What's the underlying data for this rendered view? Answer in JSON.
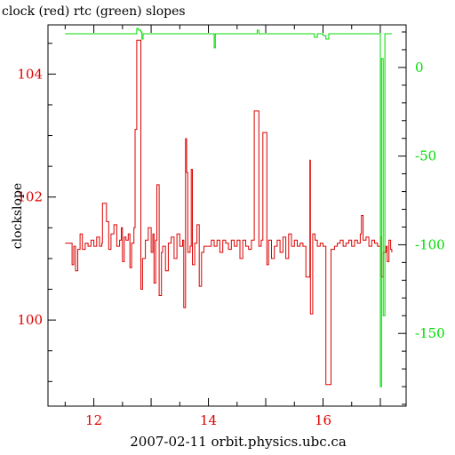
{
  "chart_data": {
    "type": "line",
    "title": "clock (red) rtc (green) slopes",
    "xlabel": "2007-02-11 orbit.physics.ubc.ca",
    "ylabel": "clockslope",
    "ylabel_right": "",
    "xlim": [
      11.2,
      17.45
    ],
    "ylim": [
      98.6,
      104.8
    ],
    "ylim_right": [
      -191,
      24
    ],
    "x_ticks": [
      12,
      14,
      16
    ],
    "y_ticks": [
      100,
      102,
      104
    ],
    "y_ticks_right": [
      0,
      -50,
      -100,
      -150
    ],
    "grid": false,
    "series": [
      {
        "name": "clock",
        "axis": "left",
        "color": "#dd0000",
        "points": [
          [
            11.5,
            101.25
          ],
          [
            11.6,
            101.25
          ],
          [
            11.62,
            100.9
          ],
          [
            11.65,
            101.2
          ],
          [
            11.68,
            100.8
          ],
          [
            11.72,
            101.15
          ],
          [
            11.76,
            101.4
          ],
          [
            11.8,
            101.15
          ],
          [
            11.85,
            101.25
          ],
          [
            11.9,
            101.2
          ],
          [
            11.95,
            101.3
          ],
          [
            12.0,
            101.2
          ],
          [
            12.05,
            101.35
          ],
          [
            12.1,
            101.2
          ],
          [
            12.14,
            101.25
          ],
          [
            12.15,
            101.9
          ],
          [
            12.2,
            101.9
          ],
          [
            12.22,
            101.6
          ],
          [
            12.26,
            101.15
          ],
          [
            12.3,
            101.4
          ],
          [
            12.35,
            101.55
          ],
          [
            12.4,
            101.2
          ],
          [
            12.45,
            101.3
          ],
          [
            12.48,
            101.5
          ],
          [
            12.5,
            100.95
          ],
          [
            12.53,
            101.35
          ],
          [
            12.56,
            101.3
          ],
          [
            12.6,
            101.4
          ],
          [
            12.63,
            100.85
          ],
          [
            12.66,
            101.25
          ],
          [
            12.7,
            101.5
          ],
          [
            12.72,
            103.1
          ],
          [
            12.75,
            104.55
          ],
          [
            12.8,
            104.55
          ],
          [
            12.82,
            100.5
          ],
          [
            12.85,
            101.0
          ],
          [
            12.9,
            101.3
          ],
          [
            12.95,
            101.5
          ],
          [
            13.0,
            101.1
          ],
          [
            13.03,
            101.4
          ],
          [
            13.05,
            100.6
          ],
          [
            13.08,
            101.3
          ],
          [
            13.1,
            102.2
          ],
          [
            13.12,
            102.2
          ],
          [
            13.14,
            100.4
          ],
          [
            13.18,
            101.1
          ],
          [
            13.2,
            101.2
          ],
          [
            13.25,
            100.8
          ],
          [
            13.3,
            101.25
          ],
          [
            13.35,
            101.35
          ],
          [
            13.4,
            101.0
          ],
          [
            13.45,
            101.4
          ],
          [
            13.5,
            101.2
          ],
          [
            13.55,
            101.3
          ],
          [
            13.57,
            100.2
          ],
          [
            13.6,
            102.95
          ],
          [
            13.62,
            102.4
          ],
          [
            13.64,
            101.1
          ],
          [
            13.68,
            101.2
          ],
          [
            13.7,
            102.45
          ],
          [
            13.72,
            100.9
          ],
          [
            13.76,
            101.25
          ],
          [
            13.8,
            101.55
          ],
          [
            13.84,
            100.55
          ],
          [
            13.88,
            101.1
          ],
          [
            13.92,
            101.2
          ],
          [
            14.0,
            101.2
          ],
          [
            14.05,
            101.3
          ],
          [
            14.1,
            101.2
          ],
          [
            14.15,
            101.3
          ],
          [
            14.2,
            101.1
          ],
          [
            14.25,
            101.3
          ],
          [
            14.3,
            101.25
          ],
          [
            14.35,
            101.15
          ],
          [
            14.4,
            101.3
          ],
          [
            14.45,
            101.2
          ],
          [
            14.5,
            101.3
          ],
          [
            14.55,
            101.0
          ],
          [
            14.6,
            101.3
          ],
          [
            14.65,
            101.2
          ],
          [
            14.7,
            101.15
          ],
          [
            14.75,
            101.3
          ],
          [
            14.8,
            103.4
          ],
          [
            14.85,
            103.4
          ],
          [
            14.88,
            101.2
          ],
          [
            14.92,
            101.3
          ],
          [
            14.95,
            103.05
          ],
          [
            15.0,
            103.05
          ],
          [
            15.02,
            100.9
          ],
          [
            15.05,
            101.3
          ],
          [
            15.1,
            101.0
          ],
          [
            15.15,
            101.2
          ],
          [
            15.2,
            101.3
          ],
          [
            15.25,
            101.1
          ],
          [
            15.3,
            101.35
          ],
          [
            15.35,
            101.0
          ],
          [
            15.4,
            101.4
          ],
          [
            15.45,
            101.2
          ],
          [
            15.5,
            101.3
          ],
          [
            15.55,
            101.2
          ],
          [
            15.6,
            101.25
          ],
          [
            15.65,
            101.2
          ],
          [
            15.7,
            100.7
          ],
          [
            15.75,
            100.7
          ],
          [
            15.77,
            102.6
          ],
          [
            15.78,
            100.1
          ],
          [
            15.8,
            100.1
          ],
          [
            15.82,
            101.4
          ],
          [
            15.86,
            101.3
          ],
          [
            15.9,
            101.2
          ],
          [
            15.95,
            101.25
          ],
          [
            16.0,
            101.2
          ],
          [
            16.05,
            98.95
          ],
          [
            16.12,
            98.95
          ],
          [
            16.14,
            101.15
          ],
          [
            16.2,
            101.2
          ],
          [
            16.25,
            101.25
          ],
          [
            16.3,
            101.3
          ],
          [
            16.35,
            101.2
          ],
          [
            16.4,
            101.25
          ],
          [
            16.45,
            101.3
          ],
          [
            16.5,
            101.2
          ],
          [
            16.55,
            101.3
          ],
          [
            16.6,
            101.25
          ],
          [
            16.65,
            101.4
          ],
          [
            16.67,
            101.7
          ],
          [
            16.7,
            101.3
          ],
          [
            16.75,
            101.35
          ],
          [
            16.8,
            101.2
          ],
          [
            16.85,
            101.3
          ],
          [
            16.9,
            101.25
          ],
          [
            16.95,
            101.2
          ],
          [
            17.0,
            101.35
          ],
          [
            17.02,
            100.7
          ],
          [
            17.05,
            101.1
          ],
          [
            17.1,
            101.2
          ],
          [
            17.12,
            100.95
          ],
          [
            17.15,
            101.3
          ],
          [
            17.18,
            101.15
          ],
          [
            17.2,
            101.1
          ]
        ]
      },
      {
        "name": "rtc",
        "axis": "right",
        "color": "#00dd00",
        "points": [
          [
            11.5,
            19
          ],
          [
            12.0,
            19
          ],
          [
            12.5,
            19
          ],
          [
            12.7,
            19
          ],
          [
            12.75,
            22
          ],
          [
            12.78,
            21
          ],
          [
            12.82,
            20
          ],
          [
            12.84,
            16
          ],
          [
            12.86,
            19
          ],
          [
            13.0,
            19
          ],
          [
            13.5,
            19
          ],
          [
            14.0,
            19
          ],
          [
            14.08,
            19
          ],
          [
            14.1,
            11
          ],
          [
            14.12,
            19
          ],
          [
            14.5,
            19
          ],
          [
            14.82,
            19
          ],
          [
            14.85,
            21
          ],
          [
            14.88,
            19
          ],
          [
            15.5,
            19
          ],
          [
            15.8,
            19
          ],
          [
            15.85,
            17
          ],
          [
            15.9,
            19
          ],
          [
            16.0,
            18
          ],
          [
            16.05,
            16
          ],
          [
            16.1,
            19
          ],
          [
            16.5,
            19
          ],
          [
            16.95,
            19
          ],
          [
            16.98,
            19
          ],
          [
            17.0,
            -180
          ],
          [
            17.02,
            5
          ],
          [
            17.05,
            -140
          ],
          [
            17.08,
            19
          ],
          [
            17.2,
            19
          ]
        ]
      }
    ]
  }
}
